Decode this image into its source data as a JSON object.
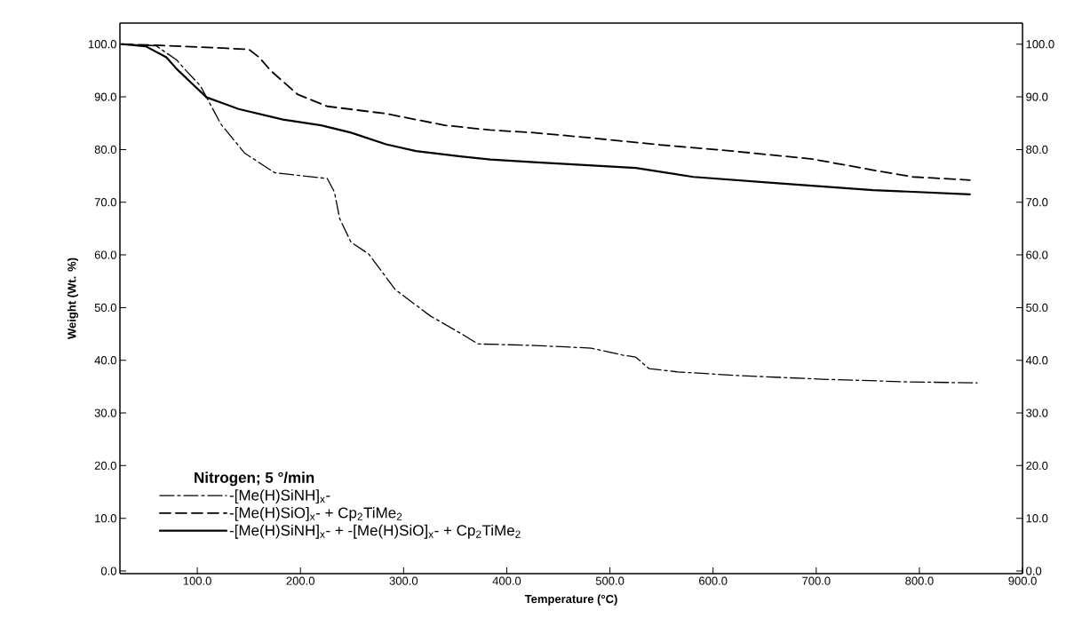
{
  "chart_data": {
    "type": "line",
    "xlabel": "Temperature (°C)",
    "ylabel": "Weight (Wt. %)",
    "legend_title": "Nitrogen; 5 °/min",
    "xlim": [
      25,
      900
    ],
    "ylim": [
      -0.5,
      104
    ],
    "y2lim": [
      -0.5,
      104
    ],
    "xticks": [
      {
        "value": 100,
        "label": "100.0"
      },
      {
        "value": 200,
        "label": "200.0"
      },
      {
        "value": 300,
        "label": "300.0"
      },
      {
        "value": 400,
        "label": "400.0"
      },
      {
        "value": 500,
        "label": "500.0"
      },
      {
        "value": 600,
        "label": "600.0"
      },
      {
        "value": 700,
        "label": "700.0"
      },
      {
        "value": 800,
        "label": "800.0"
      },
      {
        "value": 900,
        "label": "900.0"
      }
    ],
    "yticks": [
      {
        "value": 0,
        "label": "0.0"
      },
      {
        "value": 10,
        "label": "10.0"
      },
      {
        "value": 20,
        "label": "20.0"
      },
      {
        "value": 30,
        "label": "30.0"
      },
      {
        "value": 40,
        "label": "40.0"
      },
      {
        "value": 50,
        "label": "50.0"
      },
      {
        "value": 60,
        "label": "60.0"
      },
      {
        "value": 70,
        "label": "70.0"
      },
      {
        "value": 80,
        "label": "80.0"
      },
      {
        "value": 90,
        "label": "90.0"
      },
      {
        "value": 100,
        "label": "100.0"
      }
    ],
    "y2ticks": [
      {
        "value": 0,
        "label": "0.0"
      },
      {
        "value": 10,
        "label": "10.0"
      },
      {
        "value": 20,
        "label": "20.0"
      },
      {
        "value": 30,
        "label": "30.0"
      },
      {
        "value": 40,
        "label": "40.0"
      },
      {
        "value": 50,
        "label": "50.0"
      },
      {
        "value": 60,
        "label": "60.0"
      },
      {
        "value": 70,
        "label": "70.0"
      },
      {
        "value": 80,
        "label": "80.0"
      },
      {
        "value": 90,
        "label": "90.0"
      },
      {
        "value": 100,
        "label": "100.0"
      }
    ],
    "legend": "bottom left",
    "grid": false,
    "series": [
      {
        "name": "-[Me(H)SiNH]$_{x}$-",
        "color": "#000000",
        "line_style": "dashdot",
        "x": [
          27,
          60,
          80,
          89,
          103,
          109,
          123,
          146,
          175,
          226,
          233,
          238,
          249,
          266,
          292,
          326,
          358,
          372,
          427,
          482,
          512,
          525,
          538,
          565,
          624,
          706,
          788,
          856
        ],
        "values": [
          100,
          99.7,
          97,
          95,
          92.1,
          89.9,
          84.8,
          79.3,
          75.6,
          74.5,
          71.9,
          66.9,
          62.4,
          60.2,
          53.4,
          48.4,
          44.8,
          43.1,
          42.8,
          42.3,
          41,
          40.6,
          38.4,
          37.8,
          37.1,
          36.4,
          35.9,
          35.7
        ]
      },
      {
        "name": "-[Me(H)SiO]$_{x}$- + Cp$_{2}$TiMe$_{2}$",
        "color": "#000000",
        "line_style": "dashed",
        "x": [
          27,
          60,
          120,
          150,
          160,
          171,
          197,
          226,
          283,
          340,
          384,
          426,
          482,
          548,
          614,
          696,
          755,
          794,
          849
        ],
        "values": [
          100,
          99.8,
          99.3,
          99,
          97.5,
          95,
          90.5,
          88.2,
          86.8,
          84.6,
          83.7,
          83.2,
          82.2,
          80.9,
          79.8,
          78.2,
          76.1,
          74.8,
          74.2
        ]
      },
      {
        "name": "-[Me(H)SiNH]$_{x}$- + -[Me(H)SiO]$_{x}$- + Cp$_{2}$TiMe$_{2}$",
        "color": "#000000",
        "line_style": "solid",
        "x": [
          27,
          50,
          70,
          80,
          95,
          109,
          140,
          183,
          220,
          249,
          283,
          312,
          355,
          384,
          426,
          525,
          581,
          663,
          755,
          849
        ],
        "values": [
          100,
          99.6,
          97.5,
          95.3,
          92.5,
          89.9,
          87.7,
          85.7,
          84.6,
          83.2,
          81,
          79.7,
          78.7,
          78.1,
          77.6,
          76.5,
          74.8,
          73.6,
          72.3,
          71.5
        ]
      }
    ]
  }
}
